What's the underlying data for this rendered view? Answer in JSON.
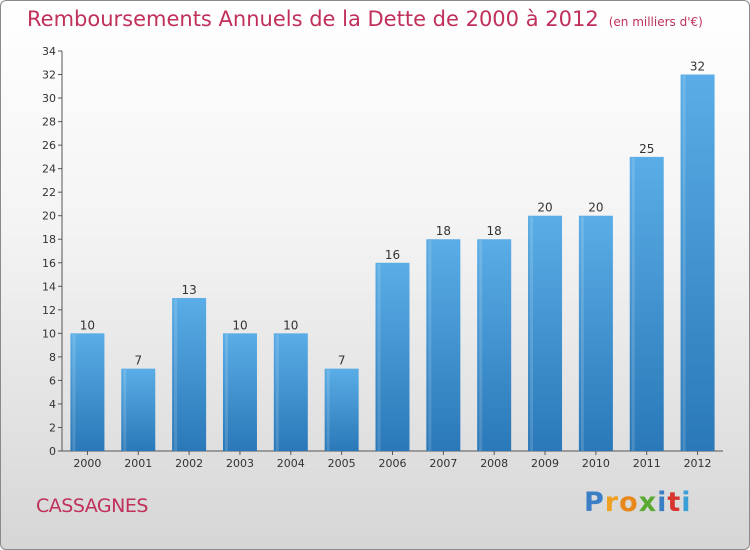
{
  "chart_data": {
    "type": "bar",
    "title": "Remboursements Annuels de la Dette de 2000 à 2012",
    "subtitle": "(en milliers d'€)",
    "categories": [
      "2000",
      "2001",
      "2002",
      "2003",
      "2004",
      "2005",
      "2006",
      "2007",
      "2008",
      "2009",
      "2010",
      "2011",
      "2012"
    ],
    "values": [
      10,
      7,
      13,
      10,
      10,
      7,
      16,
      18,
      18,
      20,
      20,
      25,
      32
    ],
    "ylim": [
      0,
      34
    ],
    "yticks": [
      0,
      2,
      4,
      6,
      8,
      10,
      12,
      14,
      16,
      18,
      20,
      22,
      24,
      26,
      28,
      30,
      32,
      34
    ],
    "xlabel": "",
    "ylabel": "",
    "grid": false,
    "legend": "none",
    "colors": {
      "bar_top": "#5aade6",
      "bar_bottom": "#2a78b8",
      "title": "#c0305a"
    }
  },
  "commune": "CASSAGNES",
  "logo": {
    "letters": [
      "P",
      "r",
      "o",
      "x",
      "i",
      "t",
      "i"
    ],
    "colors": [
      "#3a7fc6",
      "#f0a020",
      "#e8881a",
      "#5aa932",
      "#3a7fc6",
      "#d8342e",
      "#3a9fd6"
    ]
  }
}
